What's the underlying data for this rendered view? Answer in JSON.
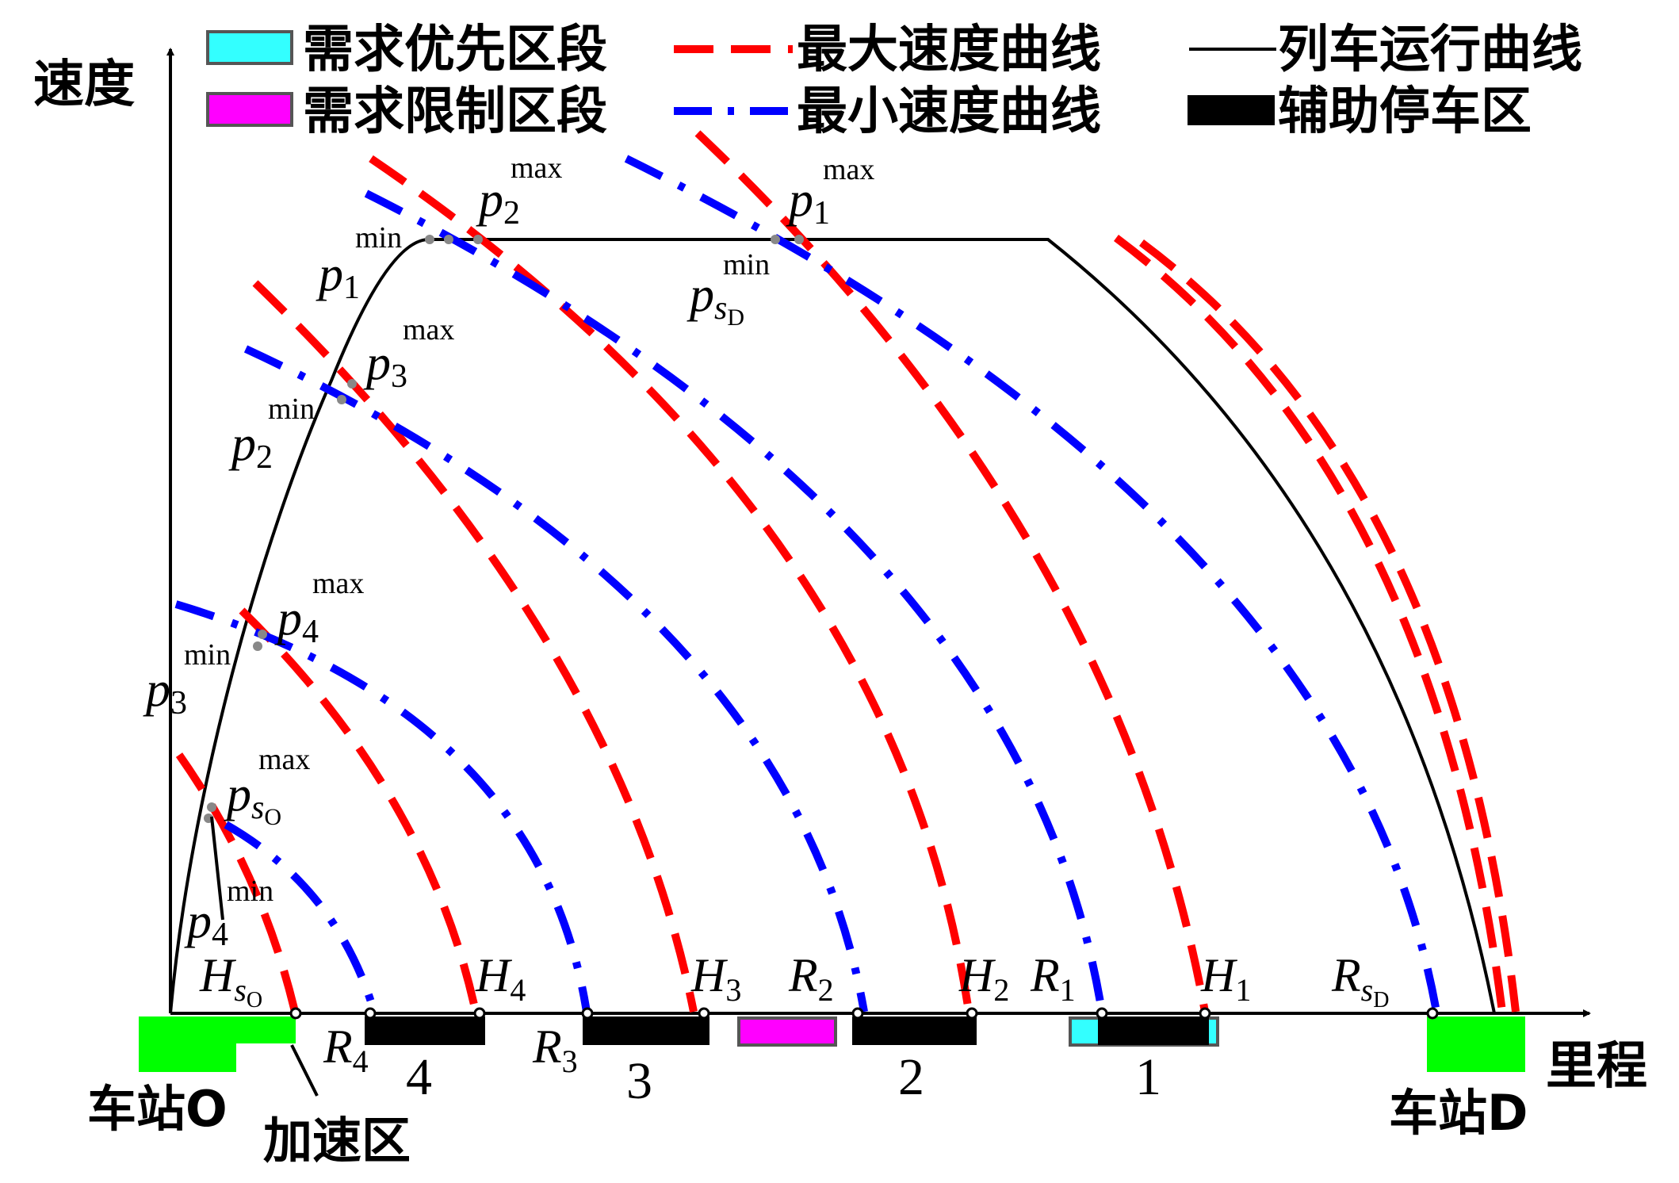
{
  "legend": {
    "priority_section": {
      "label": "需求优先区段",
      "color": "#33ffff"
    },
    "restricted_section": {
      "label": "需求限制区段",
      "color": "#ff00ff"
    },
    "max_speed_curve": {
      "label": "最大速度曲线",
      "color": "#ff0000"
    },
    "min_speed_curve": {
      "label": "最小速度曲线",
      "color": "#0000ff"
    },
    "train_run_curve": {
      "label": "列车运行曲线",
      "color": "#000000"
    },
    "aux_stop_zone": {
      "label": "辅助停车区",
      "color": "#000000"
    }
  },
  "axes": {
    "y_label": "速度",
    "x_label": "里程"
  },
  "stations": {
    "origin": {
      "label": "车站O",
      "color": "#00ff00"
    },
    "accel_zone": {
      "label": "加速区"
    },
    "destination": {
      "label": "车站D",
      "color": "#00ff00"
    }
  },
  "zone_numbers": [
    "4",
    "3",
    "2",
    "1"
  ],
  "points": {
    "p2_max": {
      "base": "p",
      "sub": "2",
      "sup": "max"
    },
    "p1_max": {
      "base": "p",
      "sub": "1",
      "sup": "max"
    },
    "p1_min": {
      "base": "p",
      "sub": "1",
      "sup": "min"
    },
    "psD_min": {
      "base": "p",
      "sub": "s",
      "subsub": "D",
      "sup": "min"
    },
    "p3_max": {
      "base": "p",
      "sub": "3",
      "sup": "max"
    },
    "p2_min": {
      "base": "p",
      "sub": "2",
      "sup": "min"
    },
    "p4_max": {
      "base": "p",
      "sub": "4",
      "sup": "max"
    },
    "p3_min": {
      "base": "p",
      "sub": "3",
      "sup": "min"
    },
    "psO_max": {
      "base": "p",
      "sub": "s",
      "subsub": "O",
      "sup": "max"
    },
    "p4_min": {
      "base": "p",
      "sub": "4",
      "sup": "min"
    }
  },
  "axis_marks": {
    "HsO": {
      "base": "H",
      "sub": "s",
      "subsub": "O"
    },
    "H4": {
      "base": "H",
      "sub": "4"
    },
    "H3": {
      "base": "H",
      "sub": "3"
    },
    "H2": {
      "base": "H",
      "sub": "2"
    },
    "H1": {
      "base": "H",
      "sub": "1"
    },
    "R4": {
      "base": "R",
      "sub": "4"
    },
    "R3": {
      "base": "R",
      "sub": "3"
    },
    "R2": {
      "base": "R",
      "sub": "2"
    },
    "R1": {
      "base": "R",
      "sub": "1"
    },
    "RsD": {
      "base": "R",
      "sub": "s",
      "subsub": "D"
    }
  }
}
